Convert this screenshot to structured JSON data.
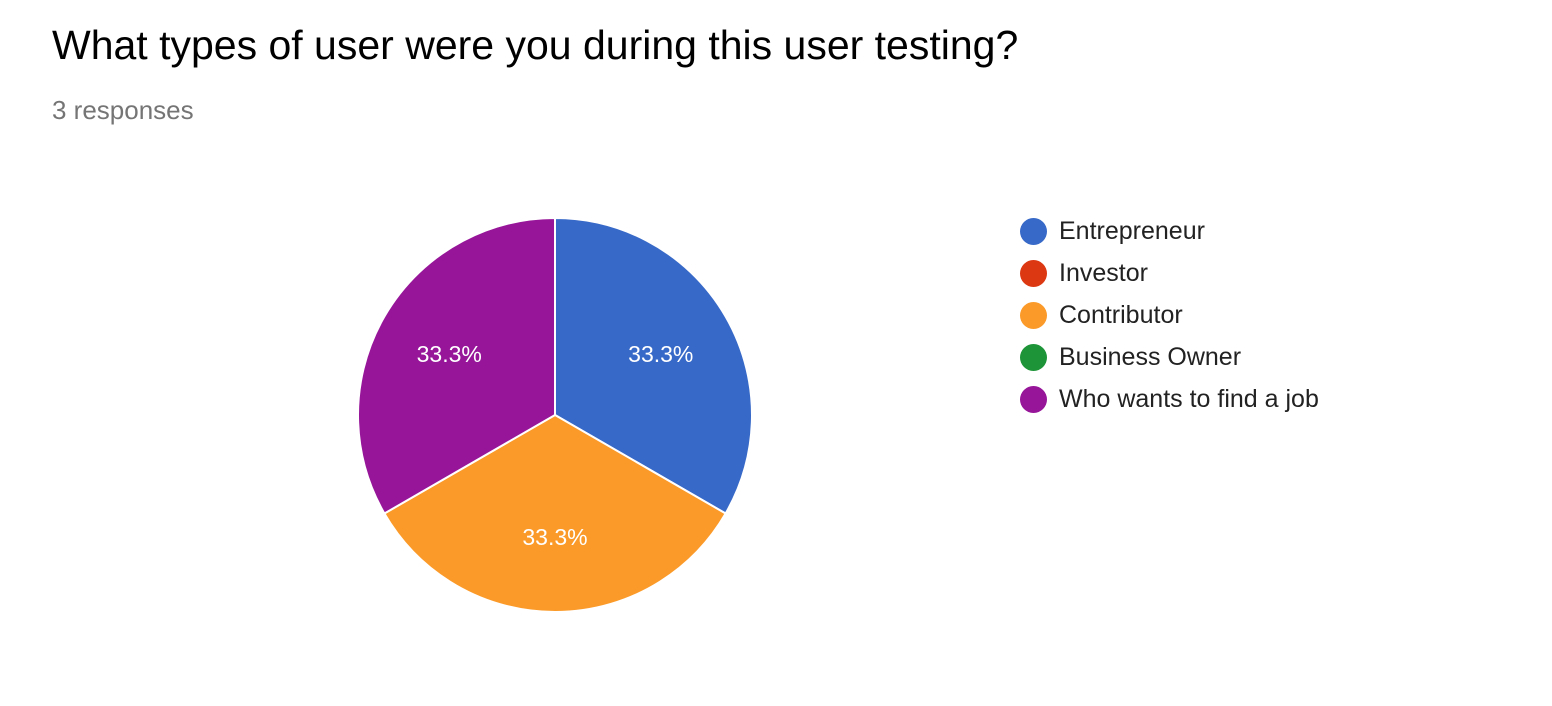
{
  "header": {
    "title": "What types of user were you during this user testing?",
    "responses": "3 responses"
  },
  "chart_data": {
    "type": "pie",
    "title": "What types of user were you during this user testing?",
    "start_angle_deg": -90,
    "direction": "clockwise",
    "legend_position": "right",
    "categories": [
      "Entrepreneur",
      "Investor",
      "Contributor",
      "Business Owner",
      "Who wants to find a job"
    ],
    "values": [
      1,
      0,
      1,
      0,
      1
    ],
    "slice_labels": [
      "33.3%",
      "",
      "33.3%",
      "",
      "33.3%"
    ],
    "colors": [
      "#3769c8",
      "#dc3912",
      "#fb9a28",
      "#1e9438",
      "#961599"
    ]
  }
}
